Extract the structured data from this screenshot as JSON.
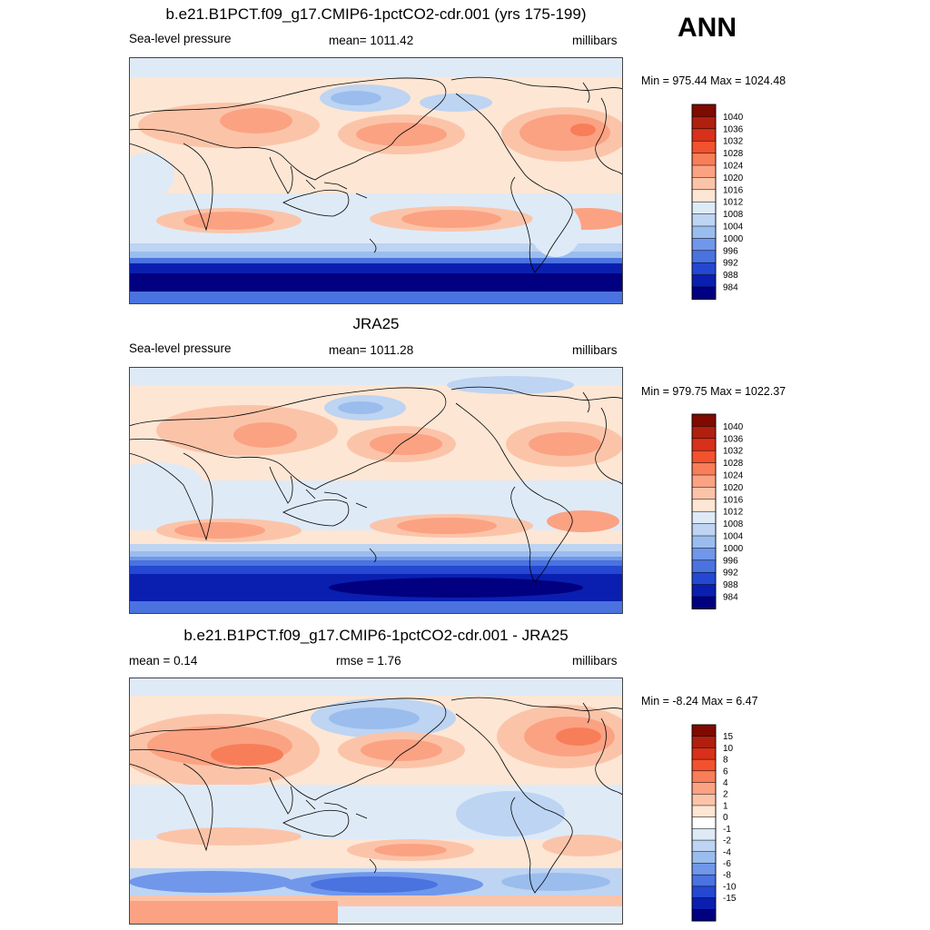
{
  "season": "ANN",
  "panels": [
    {
      "id": "model",
      "title": "b.e21.B1PCT.f09_g17.CMIP6-1pctCO2-cdr.001 (yrs 175-199)",
      "left": "Sea-level pressure",
      "center": "mean= 1011.42",
      "right": "millibars",
      "minmax": "Min = 975.44 Max = 1024.48",
      "colorbar": {
        "labels": [
          "1040",
          "1036",
          "1032",
          "1028",
          "1024",
          "1020",
          "1016",
          "1012",
          "1008",
          "1004",
          "1000",
          "996",
          "992",
          "988",
          "984"
        ],
        "colors": [
          "#7f0a00",
          "#b0200e",
          "#d8301a",
          "#f2522e",
          "#f77e58",
          "#fba283",
          "#fbc4a9",
          "#fde6d4",
          "#dfeaf7",
          "#bdd4f2",
          "#9abdee",
          "#7097ea",
          "#4a73e0",
          "#2448d2",
          "#0a1fb0",
          "#000080"
        ]
      },
      "bands": {
        "south_ocean": "#0a1fb0",
        "south_trough": "#000080",
        "mid_south": "#7097ea"
      }
    },
    {
      "id": "obs",
      "title": "JRA25",
      "left": "Sea-level pressure",
      "center": "mean= 1011.28",
      "right": "millibars",
      "minmax": "Min = 979.75 Max = 1022.37",
      "colorbar": {
        "labels": [
          "1040",
          "1036",
          "1032",
          "1028",
          "1024",
          "1020",
          "1016",
          "1012",
          "1008",
          "1004",
          "1000",
          "996",
          "992",
          "988",
          "984"
        ],
        "colors": [
          "#7f0a00",
          "#b0200e",
          "#d8301a",
          "#f2522e",
          "#f77e58",
          "#fba283",
          "#fbc4a9",
          "#fde6d4",
          "#dfeaf7",
          "#bdd4f2",
          "#9abdee",
          "#7097ea",
          "#4a73e0",
          "#2448d2",
          "#0a1fb0",
          "#000080"
        ]
      }
    },
    {
      "id": "diff",
      "title": "b.e21.B1PCT.f09_g17.CMIP6-1pctCO2-cdr.001 - JRA25",
      "left": "mean =   0.14",
      "center": "rmse =   1.76",
      "right": "millibars",
      "minmax": "Min =  -8.24 Max =   6.47",
      "colorbar": {
        "labels": [
          "15",
          "10",
          "8",
          "6",
          "4",
          "2",
          "1",
          "0",
          "-1",
          "-2",
          "-4",
          "-6",
          "-8",
          "-10",
          "-15"
        ],
        "colors": [
          "#7f0a00",
          "#b0200e",
          "#d8301a",
          "#f2522e",
          "#f77e58",
          "#fba283",
          "#fbc4a9",
          "#fde6d4",
          "#ffffff",
          "#dfeaf7",
          "#bdd4f2",
          "#9abdee",
          "#7097ea",
          "#4a73e0",
          "#2448d2",
          "#0a1fb0",
          "#000080"
        ]
      }
    }
  ]
}
